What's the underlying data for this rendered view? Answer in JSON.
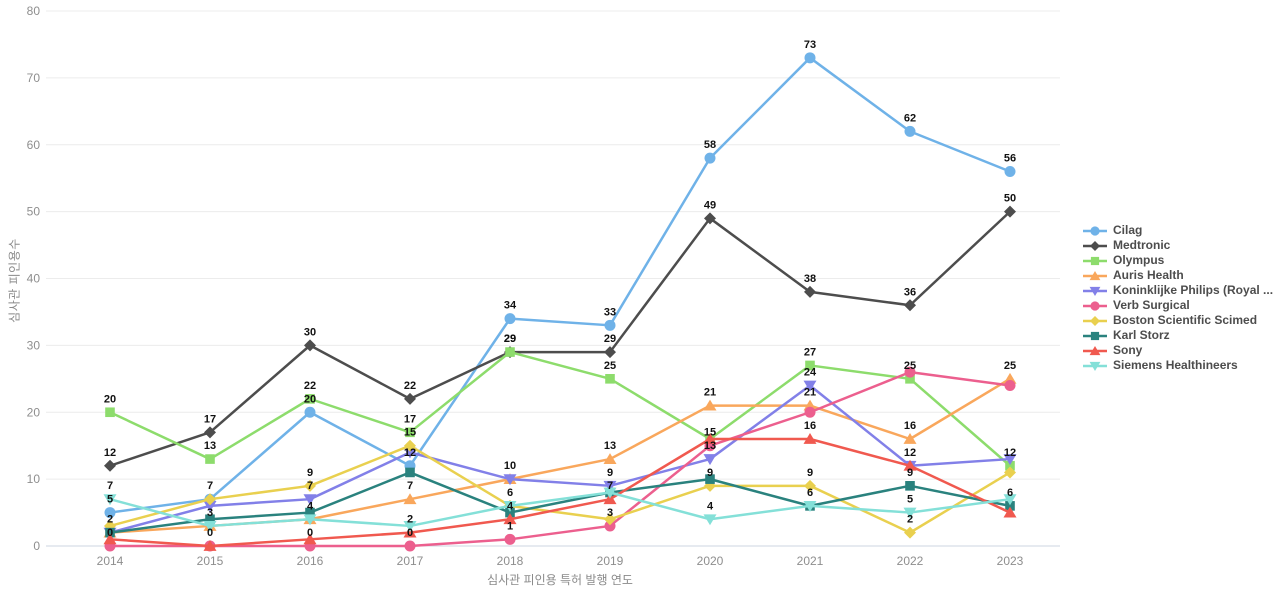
{
  "chart_data": {
    "type": "line",
    "title": "",
    "xlabel": "심사관 피인용 특허 발행 연도",
    "ylabel": "심사관 피인용수",
    "x": [
      "2014",
      "2015",
      "2016",
      "2017",
      "2018",
      "2019",
      "2020",
      "2021",
      "2022",
      "2023"
    ],
    "ylim": [
      0,
      80
    ],
    "yticks": [
      0,
      10,
      20,
      30,
      40,
      50,
      60,
      70,
      80
    ],
    "grid": true,
    "legend_position": "right",
    "series": [
      {
        "name": "Cilag",
        "color": "#6fb2e8",
        "marker": "circle",
        "values": [
          5,
          7,
          20,
          12,
          34,
          33,
          58,
          73,
          62,
          56
        ],
        "labeled": [
          1,
          1,
          1,
          1,
          1,
          1,
          1,
          1,
          1,
          1
        ]
      },
      {
        "name": "Medtronic",
        "color": "#4d4d4d",
        "marker": "diamond",
        "values": [
          12,
          17,
          30,
          22,
          29,
          29,
          49,
          38,
          36,
          50
        ],
        "labeled": [
          1,
          1,
          1,
          1,
          1,
          1,
          1,
          1,
          1,
          1
        ]
      },
      {
        "name": "Olympus",
        "color": "#8ddc6c",
        "marker": "square",
        "values": [
          20,
          13,
          22,
          17,
          29,
          25,
          16,
          27,
          25,
          12
        ],
        "labeled": [
          1,
          1,
          1,
          1,
          1,
          1,
          0,
          1,
          1,
          1
        ]
      },
      {
        "name": "Auris Health",
        "color": "#f9a75c",
        "marker": "triangle-up",
        "values": [
          2,
          3,
          4,
          7,
          10,
          13,
          21,
          21,
          16,
          25
        ],
        "labeled": [
          0,
          1,
          0,
          1,
          0,
          1,
          1,
          1,
          1,
          1
        ]
      },
      {
        "name": "Koninklijke Philips (Royal ...",
        "color": "#8280e8",
        "marker": "triangle-down",
        "values": [
          2,
          6,
          7,
          14,
          10,
          9,
          13,
          24,
          12,
          13
        ],
        "labeled": [
          1,
          0,
          1,
          0,
          1,
          1,
          1,
          1,
          1,
          0
        ]
      },
      {
        "name": "Verb Surgical",
        "color": "#ec5f8e",
        "marker": "circle",
        "values": [
          0,
          0,
          0,
          0,
          1,
          3,
          15,
          20,
          26,
          24
        ],
        "labeled": [
          1,
          0,
          1,
          1,
          1,
          1,
          1,
          0,
          0,
          0
        ]
      },
      {
        "name": "Boston Scientific Scimed",
        "color": "#e9d04f",
        "marker": "diamond",
        "values": [
          3,
          7,
          9,
          15,
          6,
          4,
          9,
          9,
          2,
          11
        ],
        "labeled": [
          0,
          0,
          1,
          1,
          1,
          0,
          1,
          1,
          1,
          0
        ]
      },
      {
        "name": "Karl Storz",
        "color": "#2a827e",
        "marker": "square",
        "values": [
          2,
          4,
          5,
          11,
          5,
          8,
          10,
          6,
          9,
          6
        ],
        "labeled": [
          0,
          0,
          0,
          0,
          0,
          0,
          0,
          1,
          1,
          1
        ]
      },
      {
        "name": "Sony",
        "color": "#f0594f",
        "marker": "triangle-up",
        "values": [
          1,
          0,
          1,
          2,
          4,
          7,
          16,
          16,
          12,
          5
        ],
        "labeled": [
          0,
          1,
          0,
          1,
          1,
          1,
          0,
          1,
          0,
          0
        ]
      },
      {
        "name": "Siemens Healthineers",
        "color": "#84e0d8",
        "marker": "triangle-down",
        "values": [
          7,
          3,
          4,
          3,
          6,
          8,
          4,
          6,
          5,
          7
        ],
        "labeled": [
          1,
          0,
          1,
          0,
          0,
          0,
          1,
          0,
          1,
          0
        ]
      }
    ]
  }
}
